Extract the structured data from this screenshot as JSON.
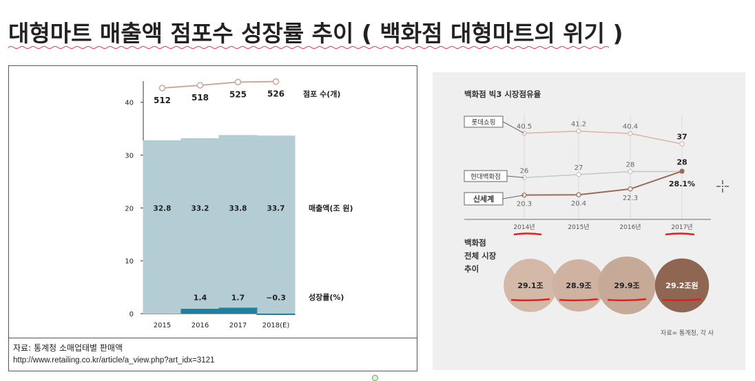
{
  "slide": {
    "title": "대형마트 매출액 점포수 성장률 추이 ( 백화점 대형마트의 위기 )"
  },
  "chart_data": [
    {
      "type": "bar",
      "categories": [
        "2015",
        "2016",
        "2017",
        "2018(E)"
      ],
      "ylim": [
        0,
        44
      ],
      "yticks": [
        0,
        10,
        20,
        30,
        40
      ],
      "series": [
        {
          "name": "매출액(조 원)",
          "type": "bar",
          "values": [
            32.8,
            33.2,
            33.8,
            33.7
          ],
          "color": "#b4ccd3"
        },
        {
          "name": "점포 수(개)",
          "type": "line",
          "values": [
            512,
            518,
            525,
            526
          ],
          "color": "#c9a99a"
        },
        {
          "name": "성장률(%)",
          "type": "bar",
          "values": [
            null,
            1.4,
            1.7,
            -0.3
          ],
          "color": "#1e7fa0"
        }
      ],
      "source": "자료: 통계청 소매업태별 판매액",
      "url": "http://www.retailing.co.kr/article/a_view.php?art_idx=3121"
    },
    {
      "type": "line",
      "title": "백화점 빅3 시장점유율",
      "categories": [
        "2014년",
        "2015년",
        "2016년",
        "2017년"
      ],
      "series": [
        {
          "name": "롯데쇼핑",
          "values": [
            40.5,
            41.2,
            40.4,
            37
          ],
          "labels": [
            "40.5",
            "41.2",
            "40.4",
            "37"
          ],
          "color": "#d8b8a8"
        },
        {
          "name": "현대백화점",
          "values": [
            26,
            27,
            28,
            28
          ],
          "labels": [
            "26",
            "27",
            "28",
            "28"
          ],
          "color": "#c8c8c8"
        },
        {
          "name": "신세계",
          "values": [
            20.3,
            20.4,
            22.3,
            28.1
          ],
          "labels": [
            "20.3",
            "20.4",
            "22.3",
            "28.1%"
          ],
          "color": "#9a6a55"
        }
      ],
      "bubble_title": [
        "백화점",
        "전체 시장",
        "추이"
      ],
      "bubbles": [
        {
          "year": "2014년",
          "label": "29.1조",
          "value": 29.1,
          "color": "#d4b8a8"
        },
        {
          "year": "2015년",
          "label": "28.9조",
          "value": 28.9,
          "color": "#cfb2a2"
        },
        {
          "year": "2016년",
          "label": "29.9조",
          "value": 29.9,
          "color": "#c7a998"
        },
        {
          "year": "2017년",
          "label": "29.2조원",
          "value": 29.2,
          "color": "#8e6651"
        }
      ],
      "source": "자료= 통계청, 각 사"
    }
  ]
}
